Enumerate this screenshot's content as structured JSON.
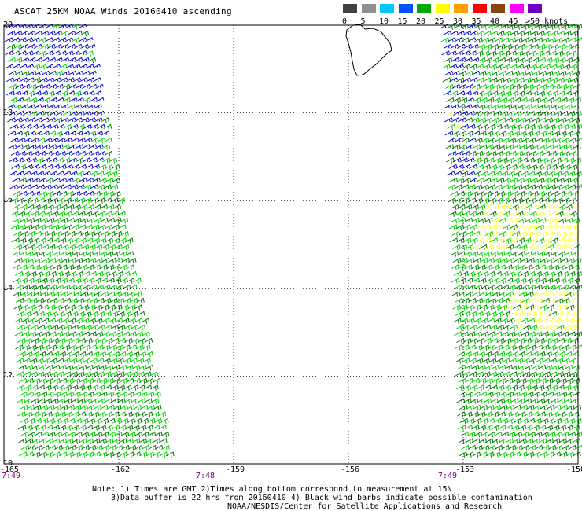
{
  "title": "ASCAT 25KM NOAA Winds 20160410 ascending",
  "color_scale": {
    "units_label": ">50 knots",
    "stops": [
      {
        "label": "0",
        "color": "#404040"
      },
      {
        "label": "5",
        "color": "#909090"
      },
      {
        "label": "10",
        "color": "#00c8ff"
      },
      {
        "label": "15",
        "color": "#0050ff"
      },
      {
        "label": "20",
        "color": "#00aa00"
      },
      {
        "label": "25",
        "color": "#ffff00"
      },
      {
        "label": "30",
        "color": "#ffa000"
      },
      {
        "label": "35",
        "color": "#ff0000"
      },
      {
        "label": "40",
        "color": "#8b4513"
      },
      {
        "label": "45",
        "color": "#ff00ff"
      },
      {
        "label": "",
        "color": "#7000c0"
      }
    ]
  },
  "map": {
    "lon_labels": [
      "-165",
      "-162",
      "-159",
      "-156",
      "-153",
      "-150"
    ],
    "lat_labels": [
      "20",
      "18",
      "16",
      "14",
      "12",
      "10"
    ],
    "time_labels": [
      "7:49",
      "7:48",
      "7:49"
    ],
    "lon_range": [
      -165,
      -150
    ],
    "lat_range": [
      10,
      20
    ],
    "swaths": [
      {
        "name": "west swath",
        "lon_top": [
          -165,
          -162.9
        ],
        "lon_bottom": [
          -164.6,
          -160.7
        ],
        "time": "7:48"
      },
      {
        "name": "east swath",
        "lon_top": [
          -153.6,
          -150
        ],
        "lon_bottom": [
          -153.1,
          -150
        ],
        "time": "7:49"
      }
    ],
    "wind_colors": {
      "light": "#0000d0",
      "moderate_dark": "#007a00",
      "moderate": "#00d000",
      "strong": "#ffff40"
    },
    "island": "Hawaii (Big Island)"
  },
  "notes": [
    "Note: 1) Times are GMT 2)Times along bottom correspond to measurement at 15N",
    "3)Data buffer is 22 hrs from 20160410 4) Black wind barbs indicate possible contamination",
    "NOAA/NESDIS/Center for Satellite Applications and Research"
  ]
}
